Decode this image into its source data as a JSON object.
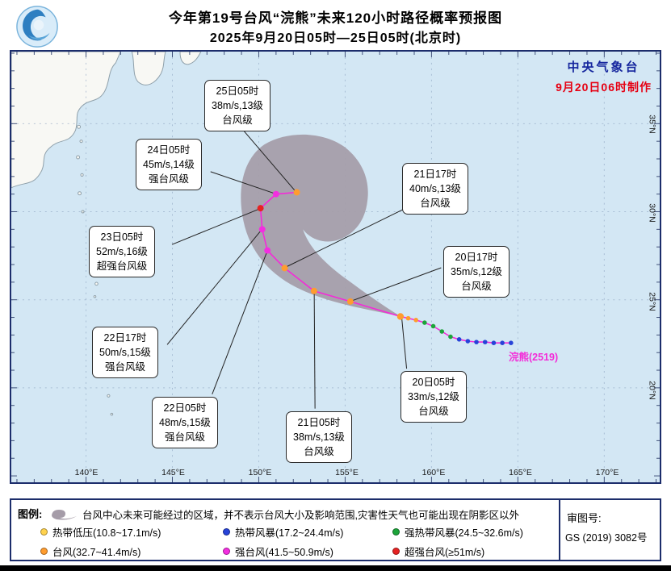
{
  "header": {
    "title_line1": "今年第19号台风“浣熊”未来120小时路径概率预报图",
    "title_line2": "2025年9月20日05时—25日05时(北京时)",
    "agency": "中央气象台",
    "issued": "9月20日06时制作"
  },
  "map": {
    "lon_labels": [
      "140°E",
      "145°E",
      "150°E",
      "155°E",
      "160°E",
      "165°E",
      "170°E"
    ],
    "lat_labels": [
      "35°N",
      "30°N",
      "25°N",
      "20°N"
    ],
    "storm_label": "浣熊(2519)"
  },
  "colors": {
    "TD": "#ffd24d",
    "TS": "#2743d8",
    "STS": "#1ca43a",
    "TY": "#ff9c2e",
    "STY": "#f32de0",
    "SuperTY": "#e62222",
    "track": "#f42ad8",
    "cone": "#a59ca8",
    "agency_blue": "#16279e",
    "issued_red": "#e60012"
  },
  "callouts": [
    {
      "time": "25日05时",
      "wind": "38m/s,13级",
      "category": "台风级"
    },
    {
      "time": "24日05时",
      "wind": "45m/s,14级",
      "category": "强台风级"
    },
    {
      "time": "23日05时",
      "wind": "52m/s,16级",
      "category": "超强台风级"
    },
    {
      "time": "22日17时",
      "wind": "50m/s,15级",
      "category": "强台风级"
    },
    {
      "time": "22日05时",
      "wind": "48m/s,15级",
      "category": "强台风级"
    },
    {
      "time": "21日05时",
      "wind": "38m/s,13级",
      "category": "台风级"
    },
    {
      "time": "20日05时",
      "wind": "33m/s,12级",
      "category": "台风级"
    },
    {
      "time": "20日17时",
      "wind": "35m/s,12级",
      "category": "台风级"
    },
    {
      "time": "21日17时",
      "wind": "40m/s,13级",
      "category": "台风级"
    }
  ],
  "legend": {
    "label": "图例:",
    "cone_note": "台风中心未来可能经过的区域，并不表示台风大小及影响范围,灾害性天气也可能出现在阴影区以外",
    "items": [
      {
        "label": "热带低压(10.8~17.1m/s)",
        "cat": "TD"
      },
      {
        "label": "热带风暴(17.2~24.4m/s)",
        "cat": "TS"
      },
      {
        "label": "强热带风暴(24.5~32.6m/s)",
        "cat": "STS"
      },
      {
        "label": "台风(32.7~41.4m/s)",
        "cat": "TY"
      },
      {
        "label": "强台风(41.5~50.9m/s)",
        "cat": "STY"
      },
      {
        "label": "超强台风(≥51m/s)",
        "cat": "SuperTY"
      }
    ],
    "review_label": "审图号:",
    "review_no": "GS (2019) 3082号"
  },
  "chart_data": {
    "type": "track-map",
    "title": "今年第19号台风“浣熊”未来120小时路径概率预报图",
    "lon_ticks": [
      140,
      145,
      150,
      155,
      160,
      165,
      170
    ],
    "lat_ticks": [
      35,
      30,
      25,
      20
    ],
    "lon_range": [
      135.7,
      173.2
    ],
    "lat_range": [
      14.6,
      39.1
    ],
    "observed": [
      {
        "lon": 164.6,
        "lat": 22.55,
        "cat": "TS"
      },
      {
        "lon": 164.1,
        "lat": 22.55,
        "cat": "TS"
      },
      {
        "lon": 163.6,
        "lat": 22.55,
        "cat": "TS"
      },
      {
        "lon": 163.1,
        "lat": 22.6,
        "cat": "TS"
      },
      {
        "lon": 162.6,
        "lat": 22.6,
        "cat": "TS"
      },
      {
        "lon": 162.1,
        "lat": 22.65,
        "cat": "TS"
      },
      {
        "lon": 161.6,
        "lat": 22.75,
        "cat": "TS"
      },
      {
        "lon": 161.1,
        "lat": 22.9,
        "cat": "STS"
      },
      {
        "lon": 160.6,
        "lat": 23.2,
        "cat": "STS"
      },
      {
        "lon": 160.1,
        "lat": 23.5,
        "cat": "STS"
      },
      {
        "lon": 159.6,
        "lat": 23.7,
        "cat": "STS"
      },
      {
        "lon": 159.1,
        "lat": 23.85,
        "cat": "TY"
      },
      {
        "lon": 158.65,
        "lat": 23.95,
        "cat": "TY"
      }
    ],
    "current": {
      "time": "20日05时",
      "lon": 158.2,
      "lat": 24.05,
      "cat": "TY",
      "wind": "33m/s,12级"
    },
    "forecast": [
      {
        "time": "20日17时",
        "lon": 155.3,
        "lat": 24.9,
        "cat": "TY",
        "wind": "35m/s,12级"
      },
      {
        "time": "21日05时",
        "lon": 153.2,
        "lat": 25.5,
        "cat": "TY",
        "wind": "38m/s,13级"
      },
      {
        "time": "21日17时",
        "lon": 151.5,
        "lat": 26.8,
        "cat": "TY",
        "wind": "40m/s,13级"
      },
      {
        "time": "22日05时",
        "lon": 150.5,
        "lat": 27.8,
        "cat": "STY",
        "wind": "48m/s,15级"
      },
      {
        "time": "22日17时",
        "lon": 150.2,
        "lat": 29.0,
        "cat": "STY",
        "wind": "50m/s,15级"
      },
      {
        "time": "23日05时",
        "lon": 150.1,
        "lat": 30.2,
        "cat": "SuperTY",
        "wind": "52m/s,16级"
      },
      {
        "time": "24日05时",
        "lon": 151.0,
        "lat": 31.0,
        "cat": "STY",
        "wind": "45m/s,14级"
      },
      {
        "time": "25日05时",
        "lon": 152.2,
        "lat": 31.1,
        "cat": "TY",
        "wind": "38m/s,13级"
      }
    ]
  }
}
